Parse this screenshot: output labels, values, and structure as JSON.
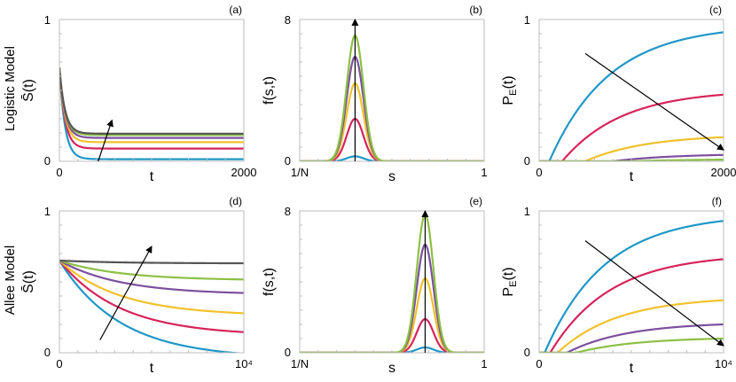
{
  "figure": {
    "row_labels": [
      "Logistic Model",
      "Allee Model"
    ]
  },
  "colors": {
    "blue": "#1f97c7",
    "red": "#d6245a",
    "yellow": "#f1c12a",
    "purple": "#7d4f9e",
    "green": "#8cc044",
    "dark": "#555555",
    "arrow": "#000000"
  },
  "chart_data": [
    {
      "panel_label": "(a)",
      "type": "line",
      "row": 0,
      "col": 0,
      "ylabel": "S̄(t)",
      "xlabel": "t",
      "x_ticks": [
        "0",
        "2000"
      ],
      "y_ticks": [
        "0",
        "1"
      ],
      "xlim": [
        0,
        2000
      ],
      "ylim": [
        0,
        1
      ],
      "grid": false,
      "kind": "decay",
      "start": 0.66,
      "rate": 60,
      "plateaus": [
        0.015,
        0.09,
        0.135,
        0.165,
        0.185,
        0.195
      ],
      "series_colors": [
        "blue",
        "red",
        "yellow",
        "purple",
        "green",
        "dark"
      ],
      "arrow": {
        "from": [
          420,
          0.0
        ],
        "to": [
          570,
          0.29
        ]
      }
    },
    {
      "panel_label": "(b)",
      "type": "line",
      "row": 0,
      "col": 1,
      "ylabel": "f(s,t)",
      "xlabel": "s",
      "x_ticks": [
        "1/N",
        "1"
      ],
      "y_ticks": [
        "0",
        "8"
      ],
      "xlim": [
        0,
        1
      ],
      "ylim": [
        0,
        8
      ],
      "grid": false,
      "kind": "gaussian",
      "center": 0.3,
      "width": 0.045,
      "peaks": [
        0.28,
        2.4,
        4.4,
        5.9,
        7.1
      ],
      "series_colors": [
        "blue",
        "red",
        "yellow",
        "purple",
        "green"
      ],
      "arrow": {
        "from": [
          0.3,
          0
        ],
        "to": [
          0.3,
          8
        ]
      }
    },
    {
      "panel_label": "(c)",
      "type": "line",
      "row": 0,
      "col": 2,
      "ylabel": "P_E(t)",
      "xlabel": "t",
      "x_ticks": [
        "0",
        "2000"
      ],
      "y_ticks": [
        "0",
        "1"
      ],
      "xlim": [
        0,
        2000
      ],
      "ylim": [
        0,
        1
      ],
      "grid": false,
      "kind": "rise",
      "t0": [
        110,
        250,
        500,
        800,
        1000
      ],
      "finals": [
        0.91,
        0.47,
        0.17,
        0.045,
        0.012
      ],
      "series_colors": [
        "blue",
        "red",
        "yellow",
        "purple",
        "green"
      ],
      "arrow": {
        "from": [
          500,
          0.76
        ],
        "to": [
          2000,
          0.08
        ]
      }
    },
    {
      "panel_label": "(d)",
      "type": "line",
      "row": 1,
      "col": 0,
      "ylabel": "S̄(t)",
      "xlabel": "t",
      "x_ticks": [
        "0",
        "10⁴"
      ],
      "y_ticks": [
        "0",
        "1"
      ],
      "xlim": [
        0,
        10000
      ],
      "ylim": [
        0,
        1
      ],
      "grid": false,
      "kind": "decay",
      "start": 0.65,
      "rate": 3300,
      "plateaus": [
        -0.04,
        0.12,
        0.26,
        0.41,
        0.51,
        0.63
      ],
      "series_colors": [
        "blue",
        "red",
        "yellow",
        "purple",
        "green",
        "dark"
      ],
      "arrow": {
        "from": [
          2200,
          0.09
        ],
        "to": [
          5000,
          0.75
        ]
      }
    },
    {
      "panel_label": "(e)",
      "type": "line",
      "row": 1,
      "col": 1,
      "ylabel": "f(s,t)",
      "xlabel": "s",
      "x_ticks": [
        "1/N",
        "1"
      ],
      "y_ticks": [
        "0",
        "8"
      ],
      "xlim": [
        0,
        1
      ],
      "ylim": [
        0,
        8
      ],
      "grid": false,
      "kind": "gaussian",
      "center": 0.68,
      "width": 0.045,
      "peaks": [
        0.3,
        1.9,
        4.2,
        6.1,
        7.8
      ],
      "series_colors": [
        "blue",
        "red",
        "yellow",
        "purple",
        "green"
      ],
      "arrow": {
        "from": [
          0.68,
          0
        ],
        "to": [
          0.68,
          8
        ]
      }
    },
    {
      "panel_label": "(f)",
      "type": "line",
      "row": 1,
      "col": 2,
      "ylabel": "P_E(t)",
      "xlabel": "t",
      "x_ticks": [
        "0",
        "10⁴"
      ],
      "y_ticks": [
        "0",
        "1"
      ],
      "xlim": [
        0,
        10000
      ],
      "ylim": [
        0,
        1
      ],
      "grid": false,
      "kind": "rise",
      "t0": [
        300,
        600,
        1000,
        1500,
        2000
      ],
      "finals": [
        0.93,
        0.66,
        0.37,
        0.2,
        0.1
      ],
      "series_colors": [
        "blue",
        "red",
        "yellow",
        "purple",
        "green"
      ],
      "arrow": {
        "from": [
          2500,
          0.79
        ],
        "to": [
          10000,
          0.05
        ]
      }
    }
  ]
}
